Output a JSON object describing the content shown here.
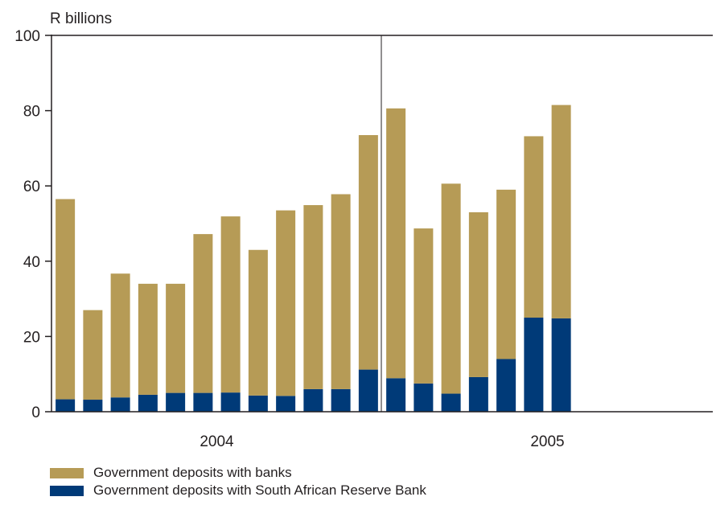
{
  "chart_data": {
    "type": "bar",
    "stacked": true,
    "ylabel": "R billions",
    "ylim": [
      0,
      100
    ],
    "yticks": [
      0,
      20,
      40,
      60,
      80,
      100
    ],
    "grid": false,
    "legend_placement": "bottom-left",
    "year_groups": [
      {
        "label": "2004",
        "count": 12
      },
      {
        "label": "2005",
        "count": 12
      }
    ],
    "n_slots": 24,
    "series": [
      {
        "name": "Government deposits with South African Reserve Bank",
        "color": "#003a78",
        "values": [
          3.3,
          3.2,
          3.8,
          4.5,
          5.0,
          5.0,
          5.1,
          4.3,
          4.2,
          6.0,
          6.0,
          11.2,
          8.9,
          7.5,
          4.8,
          9.2,
          14.0,
          25.0,
          24.8
        ]
      },
      {
        "name": "Government deposits with banks",
        "color": "#b69b56",
        "values": [
          53.2,
          23.8,
          32.9,
          29.5,
          29.0,
          42.2,
          46.8,
          38.7,
          49.3,
          48.9,
          51.8,
          62.3,
          71.7,
          41.2,
          55.8,
          43.8,
          45.0,
          48.2,
          56.7
        ]
      }
    ]
  }
}
